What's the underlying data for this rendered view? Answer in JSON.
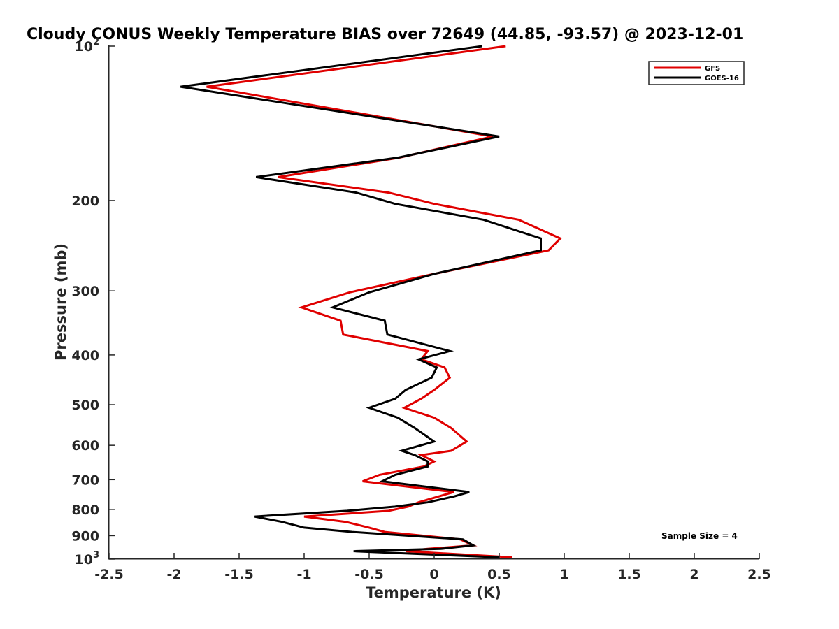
{
  "chart_data": {
    "type": "line",
    "title": "Cloudy CONUS Weekly Temperature BIAS over 72649 (44.85, -93.57) @ 2023-12-01",
    "xlabel": "Temperature (K)",
    "ylabel": "Pressure (mb)",
    "xlim": [
      -2.5,
      2.5
    ],
    "ylim": [
      100,
      1000
    ],
    "yscale": "log",
    "y_reversed": true,
    "grid": false,
    "legend_position": "top-right",
    "x_ticks": [
      "-2.5",
      "-2",
      "-1.5",
      "-1",
      "-0.5",
      "0",
      "0.5",
      "1",
      "1.5",
      "2",
      "2.5"
    ],
    "y_ticks": [
      {
        "value": 100,
        "base": "10",
        "exp": "2"
      },
      {
        "value": 200,
        "label": "200"
      },
      {
        "value": 300,
        "label": "300"
      },
      {
        "value": 400,
        "label": "400"
      },
      {
        "value": 500,
        "label": "500"
      },
      {
        "value": 600,
        "label": "600"
      },
      {
        "value": 700,
        "label": "700"
      },
      {
        "value": 800,
        "label": "800"
      },
      {
        "value": 900,
        "label": "900"
      },
      {
        "value": 1000,
        "base": "10",
        "exp": "3"
      }
    ],
    "series": [
      {
        "name": "GFS",
        "color": "#e00000",
        "points": [
          [
            0.55,
            100
          ],
          [
            -1.75,
            120
          ],
          [
            0.45,
            150
          ],
          [
            -0.27,
            165
          ],
          [
            -1.2,
            180
          ],
          [
            -0.35,
            193
          ],
          [
            0.0,
            203
          ],
          [
            0.65,
            218
          ],
          [
            0.97,
            237
          ],
          [
            0.88,
            250
          ],
          [
            0.0,
            278
          ],
          [
            -0.65,
            302
          ],
          [
            -1.02,
            323
          ],
          [
            -0.72,
            343
          ],
          [
            -0.7,
            365
          ],
          [
            -0.05,
            393
          ],
          [
            -0.1,
            408
          ],
          [
            0.08,
            423
          ],
          [
            0.12,
            443
          ],
          [
            0.0,
            468
          ],
          [
            -0.1,
            487
          ],
          [
            -0.23,
            507
          ],
          [
            0.0,
            530
          ],
          [
            0.13,
            555
          ],
          [
            0.25,
            590
          ],
          [
            0.13,
            615
          ],
          [
            -0.1,
            627
          ],
          [
            0.0,
            645
          ],
          [
            -0.08,
            660
          ],
          [
            -0.42,
            685
          ],
          [
            -0.55,
            705
          ],
          [
            0.15,
            740
          ],
          [
            -0.12,
            775
          ],
          [
            -0.2,
            790
          ],
          [
            -0.35,
            805
          ],
          [
            -1.0,
            826
          ],
          [
            -0.68,
            846
          ],
          [
            -0.5,
            868
          ],
          [
            -0.38,
            885
          ],
          [
            0.2,
            915
          ],
          [
            0.3,
            940
          ],
          [
            -0.05,
            955
          ],
          [
            -0.22,
            965
          ],
          [
            0.6,
            992
          ]
        ]
      },
      {
        "name": "GOES-16",
        "color": "#000000",
        "points": [
          [
            0.37,
            100
          ],
          [
            -1.95,
            120
          ],
          [
            0.5,
            150
          ],
          [
            -0.28,
            165
          ],
          [
            -1.37,
            180
          ],
          [
            -0.6,
            193
          ],
          [
            -0.3,
            203
          ],
          [
            0.38,
            218
          ],
          [
            0.82,
            237
          ],
          [
            0.82,
            250
          ],
          [
            0.0,
            278
          ],
          [
            -0.5,
            302
          ],
          [
            -0.78,
            323
          ],
          [
            -0.38,
            343
          ],
          [
            -0.36,
            365
          ],
          [
            0.12,
            393
          ],
          [
            -0.12,
            408
          ],
          [
            0.02,
            423
          ],
          [
            -0.02,
            443
          ],
          [
            -0.22,
            468
          ],
          [
            -0.3,
            487
          ],
          [
            -0.5,
            507
          ],
          [
            -0.28,
            530
          ],
          [
            -0.15,
            555
          ],
          [
            0.0,
            590
          ],
          [
            -0.25,
            615
          ],
          [
            -0.15,
            627
          ],
          [
            -0.05,
            645
          ],
          [
            -0.05,
            660
          ],
          [
            -0.3,
            685
          ],
          [
            -0.4,
            705
          ],
          [
            0.27,
            740
          ],
          [
            0.15,
            755
          ],
          [
            -0.05,
            775
          ],
          [
            -0.3,
            790
          ],
          [
            -0.67,
            805
          ],
          [
            -1.38,
            826
          ],
          [
            -1.17,
            846
          ],
          [
            -1.0,
            868
          ],
          [
            -0.63,
            885
          ],
          [
            0.22,
            915
          ],
          [
            0.3,
            940
          ],
          [
            0.05,
            955
          ],
          [
            -0.62,
            965
          ],
          [
            0.5,
            992
          ]
        ]
      }
    ],
    "annotations": [
      {
        "text": "Sample Size = 4"
      }
    ]
  }
}
